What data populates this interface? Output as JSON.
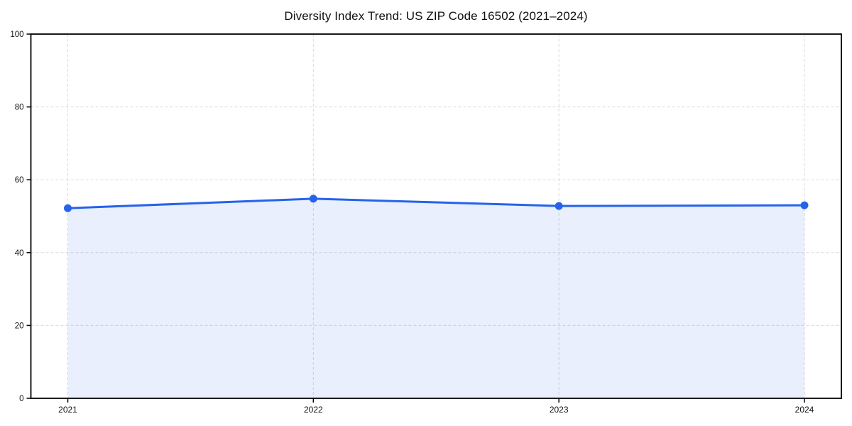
{
  "chart_data": {
    "type": "area",
    "title": "Diversity Index Trend: US ZIP Code 16502 (2021–2024)",
    "x": [
      "2021",
      "2022",
      "2023",
      "2024"
    ],
    "series": [
      {
        "name": "Diversity Index",
        "values": [
          52.2,
          54.8,
          52.8,
          53.0
        ]
      }
    ],
    "xlabel": "",
    "ylabel": "",
    "ylim": [
      0,
      100
    ],
    "yticks": [
      0,
      20,
      40,
      60,
      80,
      100
    ],
    "grid": true,
    "grid_style": "dashed",
    "legend": false,
    "colors": {
      "line": "#2563eb",
      "marker": "#2563eb",
      "fill": "rgba(37, 99, 235, 0.10)",
      "grid": "#dadada",
      "spine": "#000000",
      "tick_text": "#111111",
      "background": "#ffffff"
    }
  }
}
